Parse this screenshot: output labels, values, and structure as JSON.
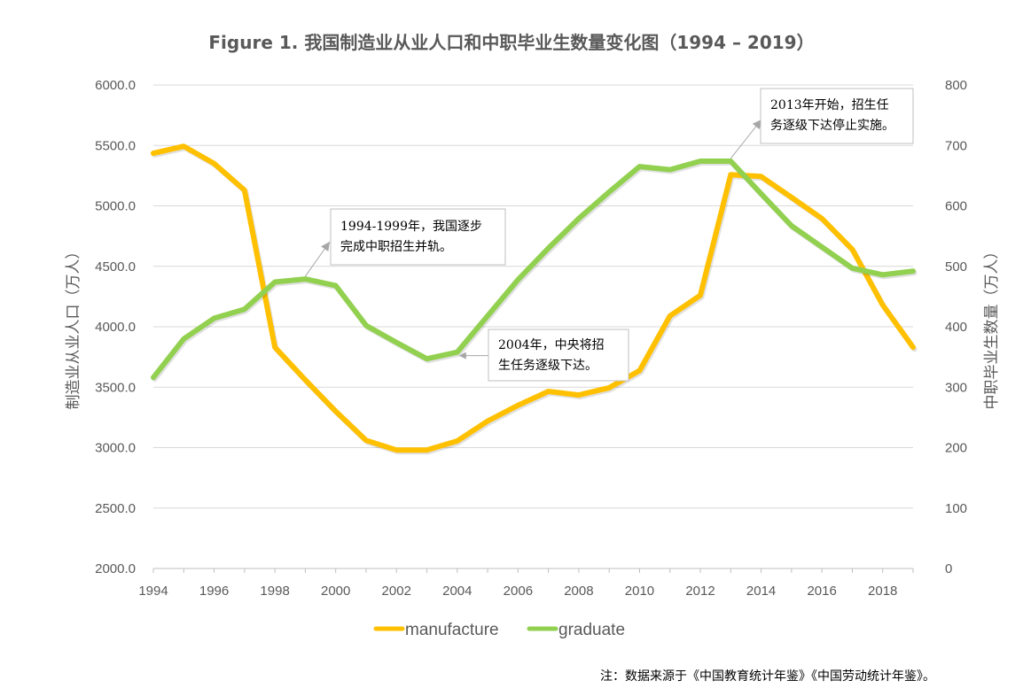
{
  "chart_data": {
    "type": "line",
    "title": "Figure 1. 我国制造业从业人口和中职毕业生数量变化图（1994 – 2019）",
    "xlabel": "",
    "ylabel": "制造业从业人口（万人）",
    "y2label": "中职毕业生数量（万人）",
    "x": [
      1994,
      1995,
      1996,
      1997,
      1998,
      1999,
      2000,
      2001,
      2002,
      2003,
      2004,
      2005,
      2006,
      2007,
      2008,
      2009,
      2010,
      2011,
      2012,
      2013,
      2014,
      2015,
      2016,
      2017,
      2018,
      2019
    ],
    "xlim": [
      1994,
      2019
    ],
    "x_tick_labels": [
      "1994",
      "1996",
      "1998",
      "2000",
      "2002",
      "2004",
      "2006",
      "2008",
      "2010",
      "2012",
      "2014",
      "2016",
      "2018"
    ],
    "ylim": [
      2000,
      6000
    ],
    "y_tick_labels": [
      "2000.0",
      "2500.0",
      "3000.0",
      "3500.0",
      "4000.0",
      "4500.0",
      "5000.0",
      "5500.0",
      "6000.0"
    ],
    "y2lim": [
      0,
      800
    ],
    "y2_tick_labels": [
      "0",
      "100",
      "200",
      "300",
      "400",
      "500",
      "600",
      "700",
      "800"
    ],
    "grid": true,
    "legend_position": "bottom",
    "series": [
      {
        "name": "manufacture",
        "axis": "left",
        "color": "#FFC000",
        "values": [
          5435,
          5493,
          5350,
          5130,
          3830,
          3560,
          3300,
          3060,
          2980,
          2980,
          3055,
          3220,
          3350,
          3465,
          3435,
          3495,
          3637,
          4090,
          4260,
          5258,
          5243,
          5070,
          4895,
          4640,
          4180,
          3830
        ]
      },
      {
        "name": "graduate",
        "axis": "right",
        "color": "#92D050",
        "values": [
          316,
          380,
          414,
          429,
          474,
          479,
          468,
          402,
          374,
          347,
          358,
          418,
          478,
          530,
          579,
          623,
          665,
          660,
          674,
          674,
          620,
          567,
          532,
          497,
          486,
          492
        ]
      }
    ],
    "annotations": [
      {
        "lines": [
          "1994-1999年，我国逐步",
          "完成中职招生并轨。"
        ],
        "points_to": {
          "series": "graduate",
          "year": 1999
        }
      },
      {
        "lines": [
          "2004年，中央将招",
          "生任务逐级下达。"
        ],
        "points_to": {
          "series": "graduate",
          "year": 2004
        }
      },
      {
        "lines": [
          "2013年开始，招生任",
          "务逐级下达停止实施。"
        ],
        "points_to": {
          "series": "graduate",
          "year": 2013
        }
      }
    ],
    "note": "注：数据来源于《中国教育统计年鉴》《中国劳动统计年鉴》。"
  }
}
